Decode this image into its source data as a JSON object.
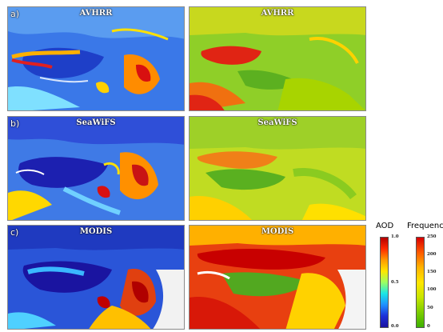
{
  "rows": [
    {
      "label": "a)",
      "sensor": "AVHRR"
    },
    {
      "label": "b)",
      "sensor": "SeaWiFS"
    },
    {
      "label": "c)",
      "sensor": "MODIS"
    }
  ],
  "aod_colorbar": {
    "title": "AOD",
    "ticks": [
      "1.0",
      "0.5",
      "0.0"
    ],
    "colors": [
      "#b40000",
      "#ff2a00",
      "#ff9a00",
      "#ffe600",
      "#9cff62",
      "#19e6e6",
      "#1e90ff",
      "#1c2fd8",
      "#1a12a0"
    ]
  },
  "freq_colorbar": {
    "title": "Frequency",
    "ticks": [
      "250",
      "200",
      "150",
      "100",
      "50",
      "0"
    ],
    "colors": [
      "#d80000",
      "#ff5a00",
      "#ffb400",
      "#ffe600",
      "#c8e600",
      "#7ccd00",
      "#3cb000"
    ]
  }
}
